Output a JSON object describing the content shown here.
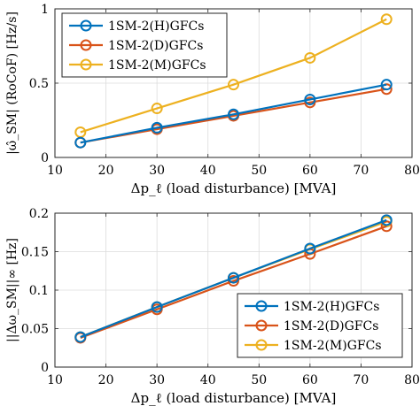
{
  "chart_data": [
    {
      "type": "line",
      "xlabel": "Δp_ℓ (load disturbance) [MVA]",
      "ylabel": "|ω̂_SM| (RoCoF) [Hz/s]",
      "xlim": [
        10,
        80
      ],
      "ylim": [
        0,
        1
      ],
      "xticks": [
        "10",
        "20",
        "30",
        "40",
        "50",
        "60",
        "70",
        "80"
      ],
      "yticks": [
        "0",
        "0.5",
        "1"
      ],
      "grid": true,
      "legend_position": "top-left",
      "x": [
        15,
        30,
        45,
        60,
        75
      ],
      "series": [
        {
          "name": "1SM-2(H)GFCs",
          "color": "#0072BD",
          "values": [
            0.1,
            0.2,
            0.29,
            0.39,
            0.49
          ]
        },
        {
          "name": "1SM-2(D)GFCs",
          "color": "#D95319",
          "values": [
            0.1,
            0.19,
            0.28,
            0.37,
            0.46
          ]
        },
        {
          "name": "1SM-2(M)GFCs",
          "color": "#EDB120",
          "values": [
            0.17,
            0.33,
            0.49,
            0.67,
            0.93
          ]
        }
      ]
    },
    {
      "type": "line",
      "xlabel": "Δp_ℓ (load disturbance) [MVA]",
      "ylabel": "||Δω_SM||∞ [Hz]",
      "xlim": [
        10,
        80
      ],
      "ylim": [
        0,
        0.2
      ],
      "xticks": [
        "10",
        "20",
        "30",
        "40",
        "50",
        "60",
        "70",
        "80"
      ],
      "yticks": [
        "0",
        "0.05",
        "0.1",
        "0.15",
        "0.2"
      ],
      "grid": true,
      "legend_position": "bottom-right",
      "x": [
        15,
        30,
        45,
        60,
        75
      ],
      "series": [
        {
          "name": "1SM-2(H)GFCs",
          "color": "#0072BD",
          "values": [
            0.039,
            0.078,
            0.116,
            0.154,
            0.191
          ]
        },
        {
          "name": "1SM-2(D)GFCs",
          "color": "#D95319",
          "values": [
            0.038,
            0.075,
            0.112,
            0.147,
            0.183
          ]
        },
        {
          "name": "1SM-2(M)GFCs",
          "color": "#EDB120",
          "values": [
            0.039,
            0.078,
            0.116,
            0.153,
            0.189
          ]
        }
      ]
    }
  ]
}
